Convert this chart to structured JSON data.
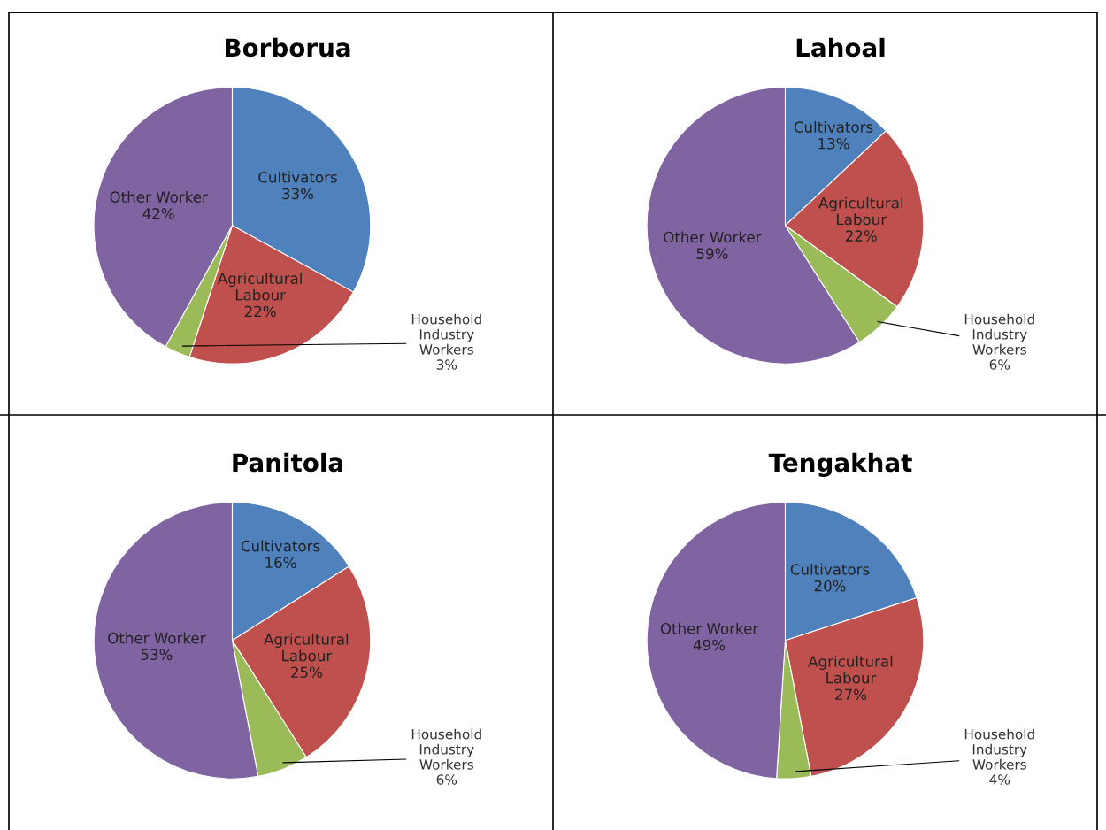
{
  "chart_data": [
    {
      "type": "pie",
      "title": "Borborua",
      "categories": [
        "Cultivators",
        "Agricultural Labour",
        "Household Industry Workers",
        "Other Worker"
      ],
      "values": [
        33,
        22,
        3,
        42
      ],
      "value_labels": [
        "33%",
        "22%",
        "3%",
        "42%"
      ],
      "colors": [
        "#4f81bd",
        "#c0504d",
        "#9bbb59",
        "#8064a2"
      ]
    },
    {
      "type": "pie",
      "title": "Lahoal",
      "categories": [
        "Cultivators",
        "Agricultural Labour",
        "Household Industry Workers",
        "Other Worker"
      ],
      "values": [
        13,
        22,
        6,
        59
      ],
      "value_labels": [
        "13%",
        "22%",
        "6%",
        "59%"
      ],
      "colors": [
        "#4f81bd",
        "#c0504d",
        "#9bbb59",
        "#8064a2"
      ]
    },
    {
      "type": "pie",
      "title": "Panitola",
      "categories": [
        "Cultivators",
        "Agricultural Labour",
        "Household Industry Workers",
        "Other Worker"
      ],
      "values": [
        16,
        25,
        6,
        53
      ],
      "value_labels": [
        "16%",
        "25%",
        "6%",
        "53%"
      ],
      "colors": [
        "#4f81bd",
        "#c0504d",
        "#9bbb59",
        "#8064a2"
      ]
    },
    {
      "type": "pie",
      "title": "Tengakhat",
      "categories": [
        "Cultivators",
        "Agricultural Labour",
        "Household Industry Workers",
        "Other Worker"
      ],
      "values": [
        20,
        27,
        4,
        49
      ],
      "value_labels": [
        "20%",
        "27%",
        "4%",
        "49%"
      ],
      "colors": [
        "#4f81bd",
        "#c0504d",
        "#9bbb59",
        "#8064a2"
      ]
    }
  ]
}
